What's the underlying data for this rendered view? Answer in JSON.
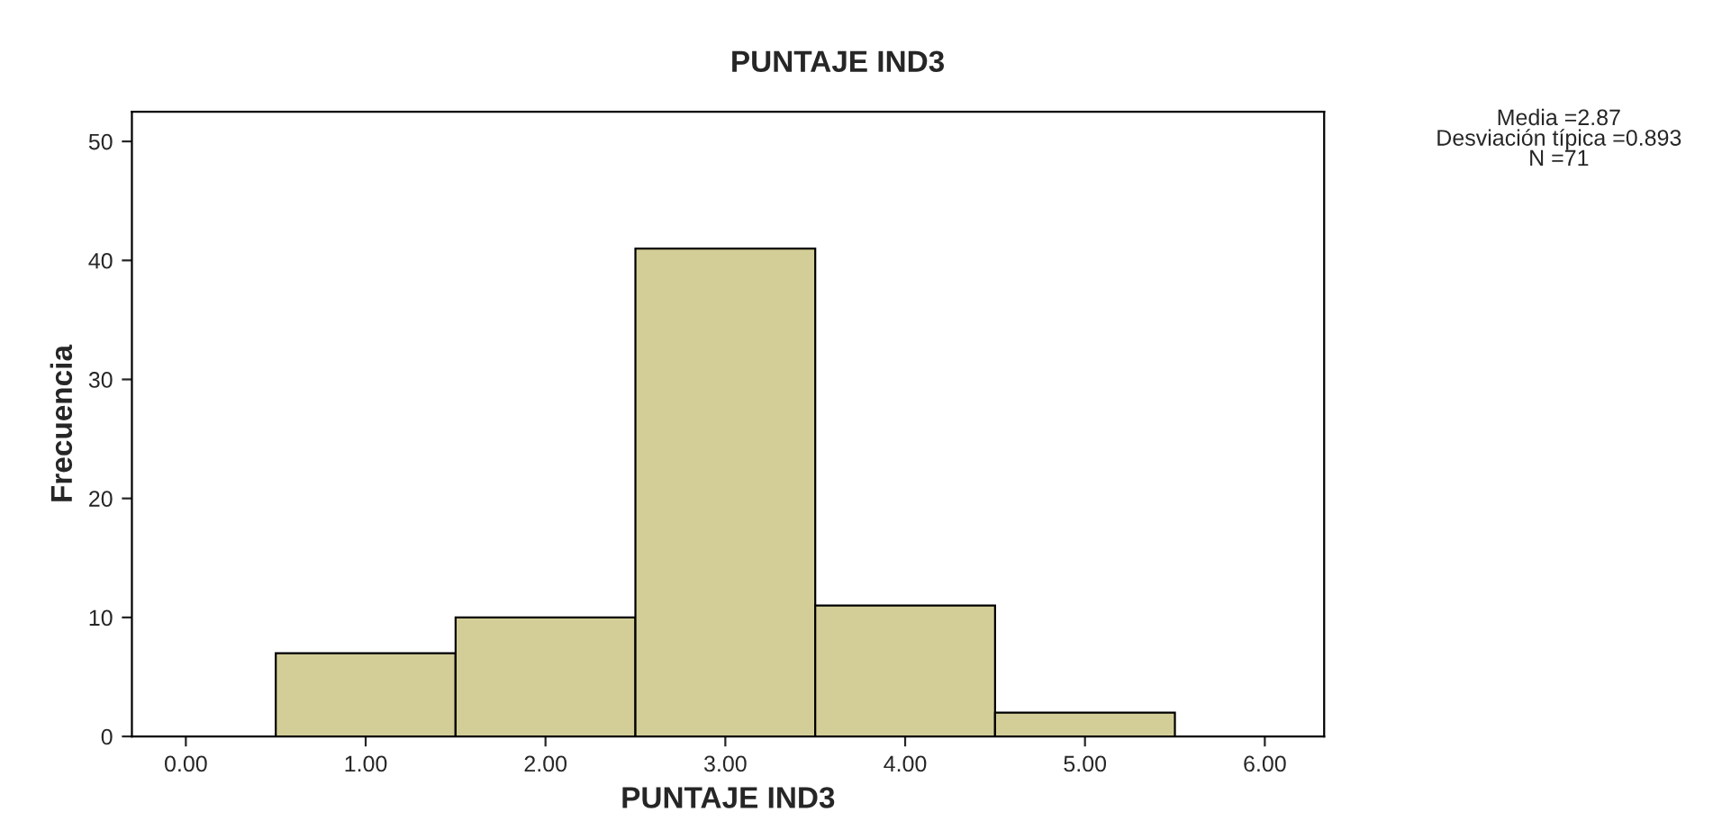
{
  "chart_data": {
    "type": "histogram",
    "title": "PUNTAJE IND3",
    "xlabel": "PUNTAJE IND3",
    "ylabel": "Frecuencia",
    "bins": [
      0.5,
      1.5,
      2.5,
      3.5,
      4.5,
      5.5
    ],
    "values": [
      7,
      10,
      41,
      11,
      2
    ],
    "color": "#d3ce97",
    "xlim": [
      -0.3,
      6.33
    ],
    "ylim": [
      0,
      52.5
    ],
    "xticks": [
      {
        "value": 0,
        "label": "0.00"
      },
      {
        "value": 1,
        "label": "1.00"
      },
      {
        "value": 2,
        "label": "2.00"
      },
      {
        "value": 3,
        "label": "3.00"
      },
      {
        "value": 4,
        "label": "4.00"
      },
      {
        "value": 5,
        "label": "5.00"
      },
      {
        "value": 6,
        "label": "6.00"
      }
    ],
    "yticks": [
      0,
      10,
      20,
      30,
      40,
      50
    ],
    "grid": false,
    "legend": false,
    "annotations": [
      "Media =2.87",
      "Desviación típica =0.893",
      "N =71"
    ]
  }
}
